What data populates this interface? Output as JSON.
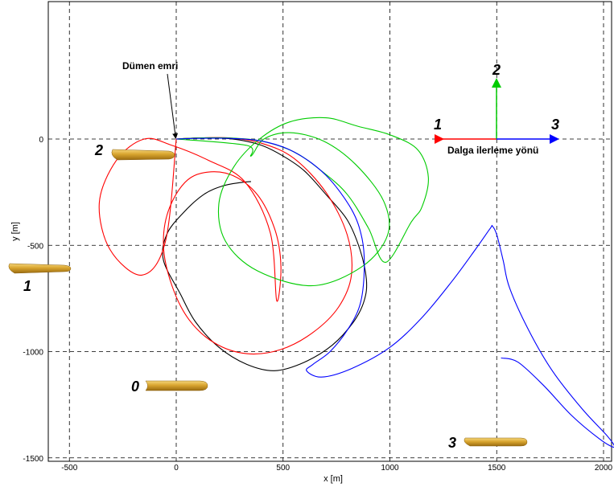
{
  "chart_data": {
    "type": "line",
    "title": "",
    "xlabel": "x [m]",
    "ylabel": "y [m]",
    "xlim": [
      -590,
      2015
    ],
    "ylim": [
      -1520,
      650
    ],
    "grid": true,
    "x_ticks": [
      -500,
      0,
      500,
      1000,
      1500,
      2000
    ],
    "y_ticks": [
      0,
      -500,
      -1000,
      -1500
    ],
    "annotations": {
      "rudder_command": "Dümen emri",
      "wave_direction": "Dalga ilerleme yönü",
      "arrow_labels": [
        "1",
        "2",
        "3"
      ],
      "ship_labels": [
        "0",
        "1",
        "2",
        "3"
      ]
    },
    "series": [
      {
        "color": "#000000",
        "x": [
          0,
          100,
          200,
          300,
          400,
          500,
          600,
          700,
          800,
          860,
          890,
          880,
          830,
          730,
          600,
          460,
          330,
          200,
          90,
          20,
          -60,
          -45,
          30,
          130,
          220,
          300,
          350
        ],
        "y": [
          0,
          5,
          5,
          -5,
          -30,
          -80,
          -150,
          -260,
          -380,
          -520,
          -660,
          -760,
          -860,
          -970,
          -1050,
          -1090,
          -1060,
          -980,
          -860,
          -730,
          -570,
          -450,
          -350,
          -260,
          -220,
          -205,
          -200
        ]
      },
      {
        "color": "#ff0000",
        "x": [
          0,
          100,
          250,
          400,
          550,
          700,
          800,
          820,
          760,
          640,
          490,
          330,
          180,
          60,
          -20,
          -60,
          -30,
          70,
          230,
          370,
          460,
          490,
          470,
          440,
          320,
          150,
          -20,
          -150,
          -280,
          -360,
          -310,
          -160,
          -50,
          0
        ],
        "y": [
          0,
          5,
          5,
          -20,
          -90,
          -250,
          -450,
          -640,
          -790,
          -910,
          -990,
          -1010,
          -960,
          -850,
          -690,
          -500,
          -320,
          -180,
          -160,
          -250,
          -420,
          -600,
          -760,
          -440,
          -200,
          -100,
          -30,
          0,
          -100,
          -300,
          -520,
          -640,
          -480,
          0
        ]
      },
      {
        "color": "#00cc00",
        "x": [
          0,
          100,
          250,
          400,
          550,
          680,
          800,
          900,
          980,
          1100,
          1150,
          1180,
          1130,
          1000,
          850,
          700,
          530,
          390,
          270,
          200,
          230,
          380,
          640,
          870,
          990,
          970,
          840,
          690,
          530,
          410,
          350,
          330,
          0
        ],
        "y": [
          0,
          5,
          5,
          -10,
          -60,
          -150,
          -260,
          -420,
          -580,
          -390,
          -320,
          -180,
          -50,
          20,
          60,
          100,
          80,
          0,
          -130,
          -300,
          -480,
          -620,
          -690,
          -600,
          -450,
          -290,
          -120,
          -10,
          30,
          0,
          -80,
          -30,
          0
        ]
      },
      {
        "color": "#0000ff",
        "x": [
          0,
          100,
          250,
          400,
          550,
          700,
          820,
          870,
          880,
          860,
          800,
          720,
          640,
          610,
          680,
          820,
          1000,
          1150,
          1290,
          1400,
          1470,
          1480,
          1500,
          1530,
          1560,
          1650,
          1760,
          1900,
          2020,
          2050,
          1980,
          1850,
          1720,
          1600,
          1520
        ],
        "y": [
          0,
          3,
          3,
          -10,
          -60,
          -170,
          -330,
          -470,
          -620,
          -780,
          -900,
          -1000,
          -1060,
          -1090,
          -1120,
          -1080,
          -980,
          -840,
          -670,
          -520,
          -420,
          -410,
          -450,
          -570,
          -700,
          -900,
          -1090,
          -1270,
          -1400,
          -1450,
          -1410,
          -1300,
          -1160,
          -1050,
          -1030
        ]
      }
    ]
  }
}
